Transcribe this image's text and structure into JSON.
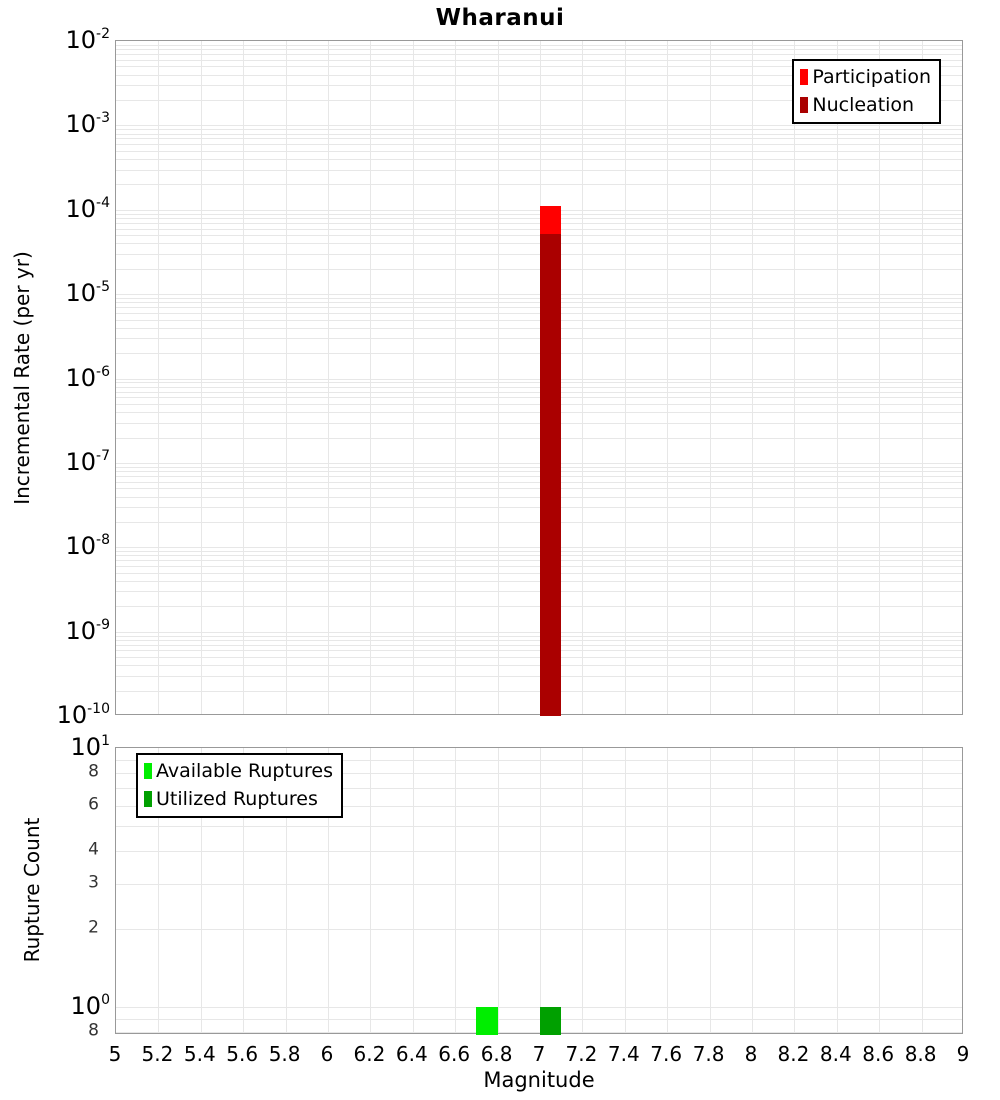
{
  "title": "Wharanui",
  "figure": {
    "background": "#ffffff",
    "grid_color": "#e7e7e7",
    "panel_border_color": "#999999",
    "legend_border_color": "#000000"
  },
  "x_axis": {
    "label": "Magnitude",
    "range": [
      5,
      9
    ],
    "tick_labels": [
      "5",
      "5.2",
      "5.4",
      "5.6",
      "5.8",
      "6",
      "6.2",
      "6.4",
      "6.6",
      "6.8",
      "7",
      "7.2",
      "7.4",
      "7.6",
      "7.8",
      "8",
      "8.2",
      "8.4",
      "8.6",
      "8.8",
      "9"
    ]
  },
  "chart_data": [
    {
      "type": "bar",
      "id": "incremental-rate-panel",
      "title": "Wharanui",
      "ylabel": "Incremental Rate (per yr)",
      "yscale": "log",
      "ylim": [
        1e-10,
        0.01
      ],
      "grid": true,
      "y_ticks": [
        {
          "base": "10",
          "exp": "-2",
          "value": 0.01
        },
        {
          "base": "10",
          "exp": "-3",
          "value": 0.001
        },
        {
          "base": "10",
          "exp": "-4",
          "value": 0.0001
        },
        {
          "base": "10",
          "exp": "-5",
          "value": 1e-05
        },
        {
          "base": "10",
          "exp": "-6",
          "value": 1e-06
        },
        {
          "base": "10",
          "exp": "-7",
          "value": 1e-07
        },
        {
          "base": "10",
          "exp": "-8",
          "value": 1e-08
        },
        {
          "base": "10",
          "exp": "-9",
          "value": 1e-09
        },
        {
          "base": "10",
          "exp": "-10",
          "value": 1e-10
        }
      ],
      "legend": {
        "position": "top-right",
        "items": [
          {
            "label": "Participation",
            "color": "#ff0000"
          },
          {
            "label": "Nucleation",
            "color": "#aa0000"
          }
        ]
      },
      "series": [
        {
          "name": "Participation",
          "color": "#ff0000",
          "bars": [
            {
              "magnitude": 7.05,
              "bar_width": 0.1,
              "value": 0.00011
            }
          ]
        },
        {
          "name": "Nucleation",
          "color": "#aa0000",
          "bars": [
            {
              "magnitude": 7.05,
              "bar_width": 0.1,
              "value": 5.2e-05
            }
          ]
        }
      ]
    },
    {
      "type": "bar",
      "id": "rupture-count-panel",
      "ylabel": "Rupture Count",
      "yscale": "log",
      "ylim": [
        0.78,
        10
      ],
      "grid": true,
      "y_ticks": [
        {
          "base": "10",
          "exp": "1",
          "value": 10
        },
        {
          "label": "8",
          "value": 8
        },
        {
          "label": "6",
          "value": 6
        },
        {
          "label": "4",
          "value": 4
        },
        {
          "label": "3",
          "value": 3
        },
        {
          "label": "2",
          "value": 2
        },
        {
          "base": "10",
          "exp": "0",
          "value": 1
        },
        {
          "label": "8",
          "value": 0.8
        }
      ],
      "legend": {
        "position": "top-left",
        "items": [
          {
            "label": "Available Ruptures",
            "color": "#00ee00"
          },
          {
            "label": "Utilized Ruptures",
            "color": "#00a000"
          }
        ]
      },
      "series": [
        {
          "name": "Available Ruptures",
          "color": "#00ee00",
          "bars": [
            {
              "magnitude": 6.75,
              "bar_width": 0.1,
              "value": 1
            }
          ]
        },
        {
          "name": "Utilized Ruptures",
          "color": "#00a000",
          "bars": [
            {
              "magnitude": 7.05,
              "bar_width": 0.1,
              "value": 1
            }
          ]
        }
      ]
    }
  ]
}
